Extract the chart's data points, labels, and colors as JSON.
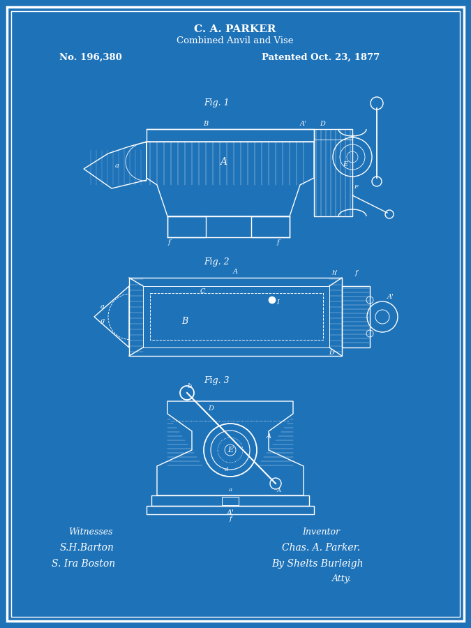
{
  "bg_color": "#1e72b8",
  "border_color": "#ffffff",
  "text_color": "#ffffff",
  "title1": "C. A. PARKER",
  "title2": "Combined Anvil and Vise",
  "patent_no": "No. 196,380",
  "patent_date": "Patented Oct. 23, 1877",
  "fig1_label": "Fig. 1",
  "fig2_label": "Fig. 2",
  "fig3_label": "Fig. 3",
  "witnesses_label": "Witnesses",
  "inventor_label": "Inventor",
  "witness_sig1": "S.H.Barton",
  "witness_sig2": "S. Ira Boston",
  "inventor_sig1": "Chas. A. Parker.",
  "inventor_sig2": "By Shelts Burleigh",
  "inventor_sig3": "Atty."
}
